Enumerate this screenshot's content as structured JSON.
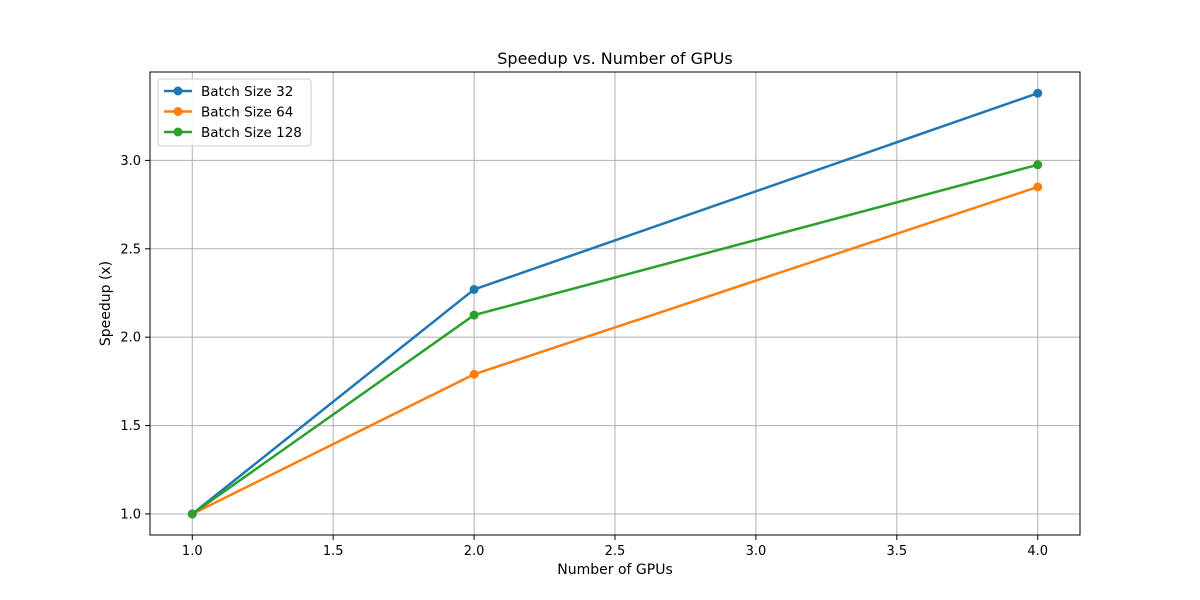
{
  "chart_data": {
    "type": "line",
    "title": "Speedup vs. Number of GPUs",
    "xlabel": "Number of GPUs",
    "ylabel": "Speedup (x)",
    "x": [
      1,
      2,
      4
    ],
    "xlim": [
      0.85,
      4.15
    ],
    "ylim": [
      0.881,
      3.5
    ],
    "xticks": [
      1.0,
      1.5,
      2.0,
      2.5,
      3.0,
      3.5,
      4.0
    ],
    "yticks": [
      1.0,
      1.5,
      2.0,
      2.5,
      3.0
    ],
    "xtick_labels": [
      "1.0",
      "1.5",
      "2.0",
      "2.5",
      "3.0",
      "3.5",
      "4.0"
    ],
    "ytick_labels": [
      "1.0",
      "1.5",
      "2.0",
      "2.5",
      "3.0"
    ],
    "grid": true,
    "legend_position": "top-left",
    "series": [
      {
        "name": "Batch Size 32",
        "color": "#1f77b4",
        "values": [
          1.0,
          2.27,
          3.38
        ]
      },
      {
        "name": "Batch Size 64",
        "color": "#ff7f0e",
        "values": [
          1.0,
          1.79,
          2.85
        ]
      },
      {
        "name": "Batch Size 128",
        "color": "#2ca02c",
        "values": [
          1.0,
          2.125,
          2.975
        ]
      }
    ]
  }
}
